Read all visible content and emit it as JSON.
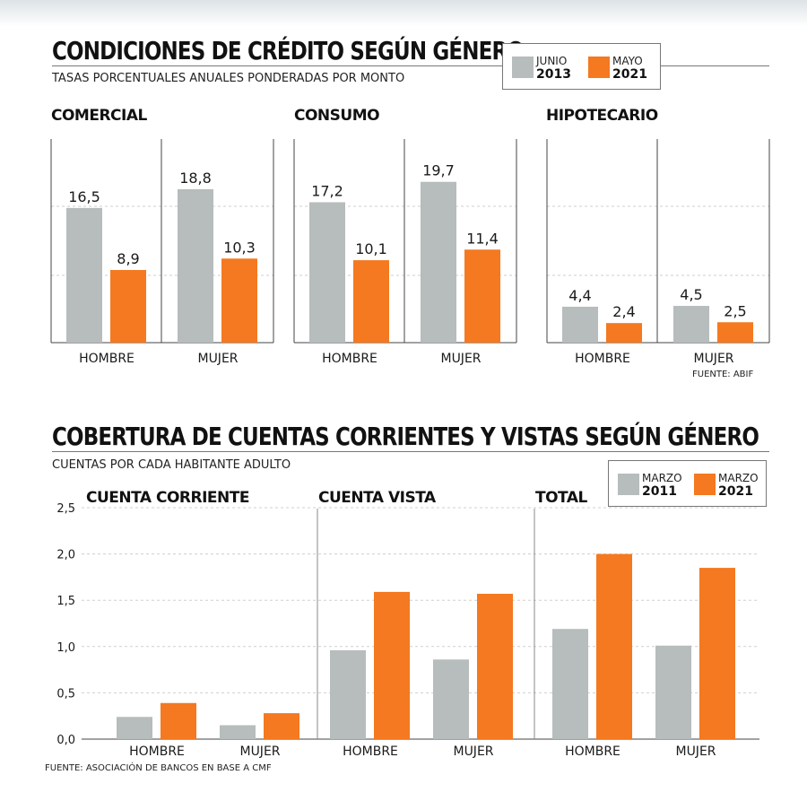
{
  "colors": {
    "series_a": "#b7bcbc",
    "series_b": "#f47920",
    "grid": "#cfcfcf",
    "axis": "#444444"
  },
  "section1": {
    "title": "CONDICIONES DE CRÉDITO SEGÚN GÉNERO",
    "subtitle": "TASAS PORCENTUALES ANUALES PONDERADAS POR MONTO",
    "legend": [
      {
        "top": "JUNIO",
        "bottom": "2013"
      },
      {
        "top": "MAYO",
        "bottom": "2021"
      }
    ],
    "source": "FUENTE: ABIF"
  },
  "section2": {
    "title": "COBERTURA DE CUENTAS CORRIENTES Y VISTAS SEGÚN GÉNERO",
    "subtitle": "CUENTAS POR CADA HABITANTE ADULTO",
    "legend": [
      {
        "top": "MARZO",
        "bottom": "2011"
      },
      {
        "top": "MARZO",
        "bottom": "2021"
      }
    ],
    "source": "FUENTE: ASOCIACIÓN DE BANCOS EN BASE A CMF"
  },
  "chart_data": [
    {
      "type": "bar",
      "title": "COMERCIAL",
      "categories": [
        "HOMBRE",
        "MUJER"
      ],
      "series": [
        {
          "name": "JUNIO 2013",
          "values": [
            16.5,
            18.8
          ]
        },
        {
          "name": "MAYO 2021",
          "values": [
            8.9,
            10.3
          ]
        }
      ],
      "value_labels": [
        [
          "16,5",
          "18,8"
        ],
        [
          "8,9",
          "10,3"
        ]
      ],
      "ylim": [
        0,
        20
      ],
      "grid": true
    },
    {
      "type": "bar",
      "title": "CONSUMO",
      "categories": [
        "HOMBRE",
        "MUJER"
      ],
      "series": [
        {
          "name": "JUNIO 2013",
          "values": [
            17.2,
            19.7
          ]
        },
        {
          "name": "MAYO 2021",
          "values": [
            10.1,
            11.4
          ]
        }
      ],
      "value_labels": [
        [
          "17,2",
          "19,7"
        ],
        [
          "10,1",
          "11,4"
        ]
      ],
      "ylim": [
        0,
        20
      ],
      "grid": true
    },
    {
      "type": "bar",
      "title": "HIPOTECARIO",
      "categories": [
        "HOMBRE",
        "MUJER"
      ],
      "series": [
        {
          "name": "JUNIO 2013",
          "values": [
            4.4,
            4.5
          ]
        },
        {
          "name": "MAYO 2021",
          "values": [
            2.4,
            2.5
          ]
        }
      ],
      "value_labels": [
        [
          "4,4",
          "4,5"
        ],
        [
          "2,4",
          "2,5"
        ]
      ],
      "ylim": [
        0,
        20
      ],
      "grid": true
    },
    {
      "type": "bar",
      "panels": [
        "CUENTA CORRIENTE",
        "CUENTA VISTA",
        "TOTAL"
      ],
      "categories": [
        "HOMBRE",
        "MUJER",
        "HOMBRE",
        "MUJER",
        "HOMBRE",
        "MUJER"
      ],
      "series": [
        {
          "name": "MARZO 2011",
          "values": [
            0.24,
            0.15,
            0.96,
            0.86,
            1.19,
            1.01
          ]
        },
        {
          "name": "MARZO 2021",
          "values": [
            0.39,
            0.28,
            1.59,
            1.57,
            2.0,
            1.85
          ]
        }
      ],
      "yticks": [
        "0,0",
        "0,5",
        "1,0",
        "1,5",
        "2,0",
        "2,5"
      ],
      "ylim": [
        0,
        2.5
      ],
      "grid": true
    }
  ]
}
